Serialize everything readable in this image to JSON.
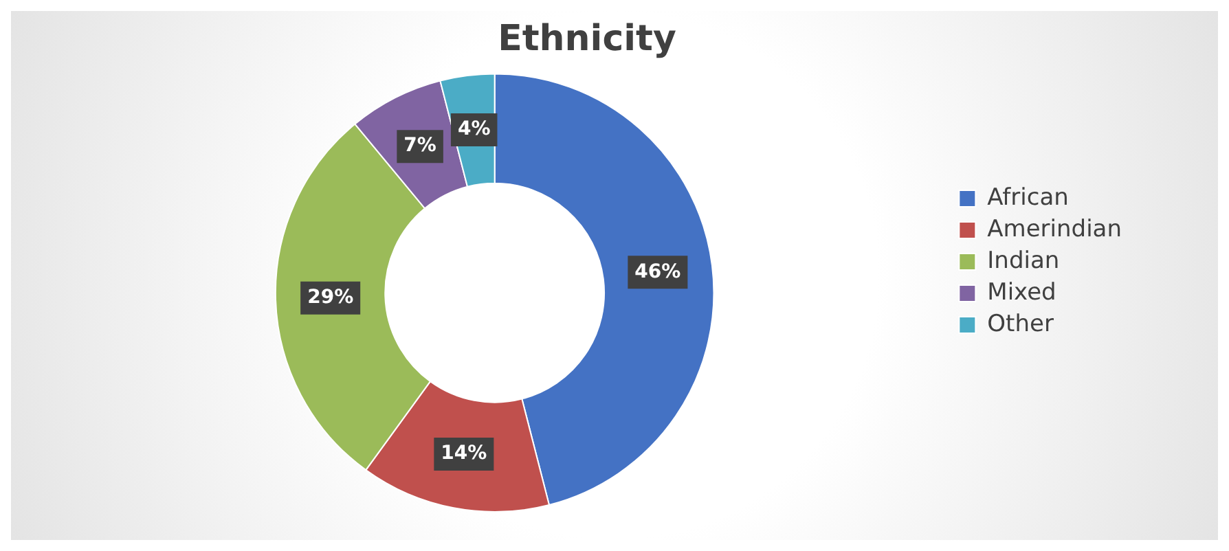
{
  "chart_data": {
    "type": "donut",
    "title": "Ethnicity",
    "categories": [
      "African",
      "Amerindian",
      "Indian",
      "Mixed",
      "Other"
    ],
    "values": [
      46,
      14,
      29,
      7,
      4
    ],
    "colors": [
      "#4472c4",
      "#c0504d",
      "#9bbb59",
      "#8064a2",
      "#4bacc6"
    ],
    "value_labels": [
      "46%",
      "14%",
      "29%",
      "7%",
      "4%"
    ],
    "legend": "right"
  }
}
